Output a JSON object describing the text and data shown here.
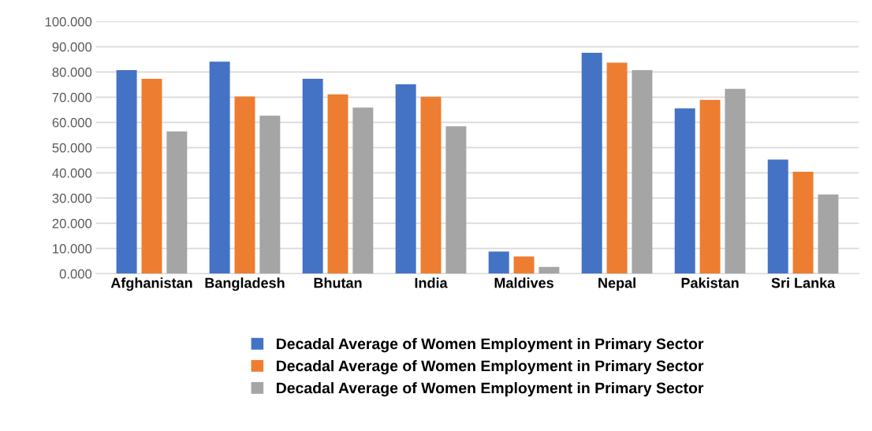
{
  "chart_data": {
    "type": "bar",
    "categories": [
      "Afghanistan",
      "Bangladesh",
      "Bhutan",
      "India",
      "Maldives",
      "Nepal",
      "Pakistan",
      "Sri Lanka"
    ],
    "series": [
      {
        "name": "Decadal Average of Women Employment in Primary Sector",
        "color": "#4472c4",
        "values": [
          80.7,
          84.1,
          77.3,
          75.1,
          8.8,
          87.6,
          65.6,
          45.3
        ]
      },
      {
        "name": "Decadal Average of Women Employment in Primary Sector",
        "color": "#ed7d31",
        "values": [
          77.3,
          70.3,
          71.1,
          70.2,
          6.8,
          83.7,
          68.9,
          40.4
        ]
      },
      {
        "name": "Decadal Average of Women Employment in Primary Sector",
        "color": "#a5a5a5",
        "values": [
          56.4,
          62.7,
          65.9,
          58.5,
          2.7,
          80.7,
          73.3,
          31.4
        ]
      }
    ],
    "ylim": [
      0,
      100
    ],
    "yticks": [
      {
        "value": 0,
        "label": "0.000"
      },
      {
        "value": 10,
        "label": "10.000"
      },
      {
        "value": 20,
        "label": "20.000"
      },
      {
        "value": 30,
        "label": "30.000"
      },
      {
        "value": 40,
        "label": "40.000"
      },
      {
        "value": 50,
        "label": "50.000"
      },
      {
        "value": 60,
        "label": "60.000"
      },
      {
        "value": 70,
        "label": "70.000"
      },
      {
        "value": 80,
        "label": "80.000"
      },
      {
        "value": 90,
        "label": "90.000"
      },
      {
        "value": 100,
        "label": "100.000"
      }
    ],
    "grid": "y",
    "legend": "bottom"
  }
}
